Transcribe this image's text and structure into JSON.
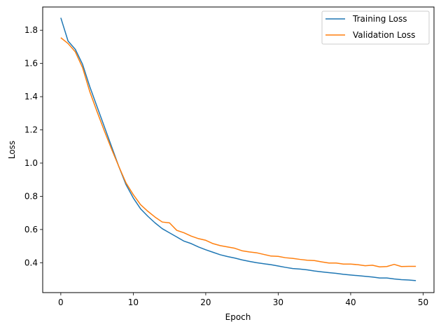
{
  "chart_data": {
    "type": "line",
    "title": "",
    "xlabel": "Epoch",
    "ylabel": "Loss",
    "xlim": [
      -2.5,
      51.5
    ],
    "ylim": [
      0.22,
      1.94
    ],
    "xticks": [
      0,
      10,
      20,
      30,
      40,
      50
    ],
    "yticks": [
      0.4,
      0.6,
      0.8,
      1.0,
      1.2,
      1.4,
      1.6,
      1.8
    ],
    "ytick_labels": [
      "0.4",
      "0.6",
      "0.8",
      "1.0",
      "1.2",
      "1.4",
      "1.6",
      "1.8"
    ],
    "grid": false,
    "legend_position": "upper right",
    "x": [
      0,
      1,
      2,
      3,
      4,
      5,
      6,
      7,
      8,
      9,
      10,
      11,
      12,
      13,
      14,
      15,
      16,
      17,
      18,
      19,
      20,
      21,
      22,
      23,
      24,
      25,
      26,
      27,
      28,
      29,
      30,
      31,
      32,
      33,
      34,
      35,
      36,
      37,
      38,
      39,
      40,
      41,
      42,
      43,
      44,
      45,
      46,
      47,
      48,
      49
    ],
    "series": [
      {
        "name": "Training Loss",
        "color": "#1f77b4",
        "values": [
          1.875,
          1.735,
          1.685,
          1.595,
          1.46,
          1.34,
          1.22,
          1.1,
          0.98,
          0.87,
          0.79,
          0.725,
          0.68,
          0.64,
          0.605,
          0.58,
          0.555,
          0.53,
          0.515,
          0.495,
          0.478,
          0.463,
          0.448,
          0.437,
          0.428,
          0.417,
          0.408,
          0.4,
          0.394,
          0.388,
          0.38,
          0.372,
          0.365,
          0.362,
          0.357,
          0.35,
          0.345,
          0.34,
          0.336,
          0.33,
          0.326,
          0.322,
          0.318,
          0.314,
          0.308,
          0.308,
          0.302,
          0.298,
          0.296,
          0.292
        ]
      },
      {
        "name": "Validation Loss",
        "color": "#ff7f0e",
        "values": [
          1.755,
          1.72,
          1.67,
          1.575,
          1.43,
          1.31,
          1.195,
          1.085,
          0.98,
          0.88,
          0.81,
          0.75,
          0.71,
          0.675,
          0.645,
          0.64,
          0.595,
          0.58,
          0.56,
          0.545,
          0.535,
          0.515,
          0.503,
          0.495,
          0.487,
          0.472,
          0.465,
          0.46,
          0.45,
          0.44,
          0.438,
          0.43,
          0.426,
          0.42,
          0.415,
          0.413,
          0.405,
          0.398,
          0.398,
          0.392,
          0.392,
          0.388,
          0.382,
          0.385,
          0.375,
          0.377,
          0.39,
          0.377,
          0.378,
          0.378
        ]
      }
    ]
  }
}
